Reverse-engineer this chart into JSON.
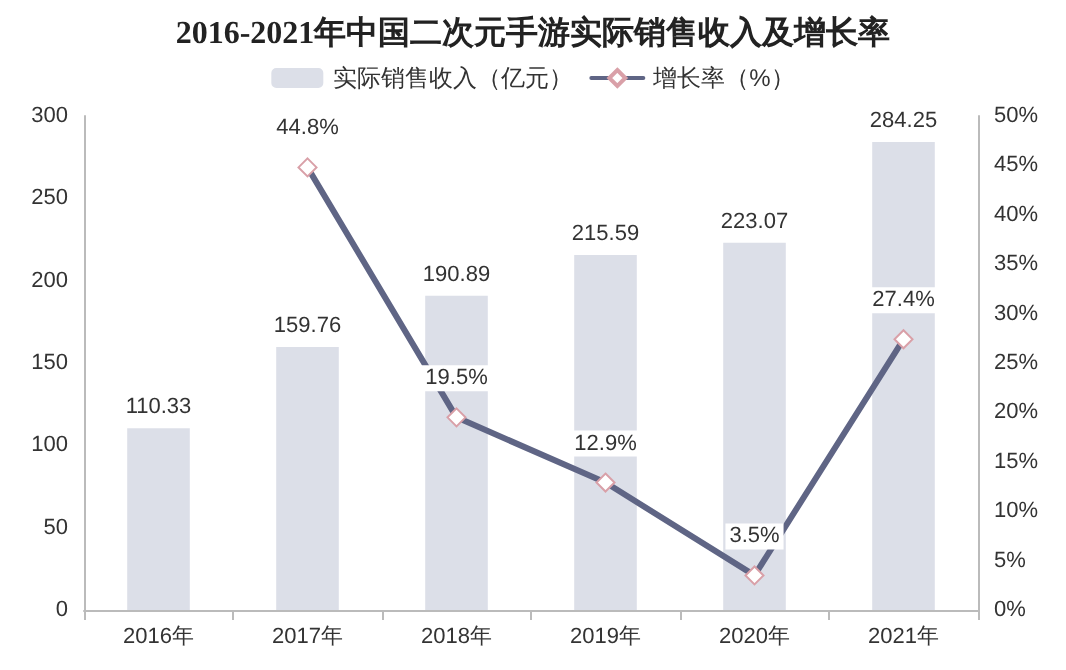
{
  "chart_data": {
    "type": "bar",
    "title": "2016-2021年中国二次元手游实际销售收入及增长率",
    "categories": [
      "2016年",
      "2017年",
      "2018年",
      "2019年",
      "2020年",
      "2021年"
    ],
    "series": [
      {
        "name": "实际销售收入（亿元）",
        "color": "#dcdfe8",
        "values": [
          110.33,
          159.76,
          190.89,
          215.59,
          223.07,
          284.25
        ],
        "value_labels": [
          "110.33",
          "159.76",
          "190.89",
          "215.59",
          "223.07",
          "284.25"
        ]
      },
      {
        "name": "增长率（%）",
        "type": "line",
        "axis": "y2",
        "color": "#5f6585",
        "marker": "diamond",
        "values": [
          null,
          44.8,
          19.5,
          12.9,
          3.5,
          27.4
        ],
        "value_labels": [
          null,
          "44.8%",
          "19.5%",
          "12.9%",
          "3.5%",
          "27.4%"
        ]
      }
    ],
    "ylim": [
      0,
      300
    ],
    "yticks": [
      0,
      50,
      100,
      150,
      200,
      250,
      300
    ],
    "y2lim": [
      0,
      50
    ],
    "y2ticks": [
      {
        "value": 0,
        "label": "0%"
      },
      {
        "value": 5,
        "label": "5%"
      },
      {
        "value": 10,
        "label": "10%"
      },
      {
        "value": 15,
        "label": "15%"
      },
      {
        "value": 20,
        "label": "20%"
      },
      {
        "value": 25,
        "label": "25%"
      },
      {
        "value": 30,
        "label": "30%"
      },
      {
        "value": 35,
        "label": "35%"
      },
      {
        "value": 40,
        "label": "40%"
      },
      {
        "value": 45,
        "label": "45%"
      },
      {
        "value": 50,
        "label": "50%"
      }
    ],
    "grid": false,
    "legend": "top"
  }
}
